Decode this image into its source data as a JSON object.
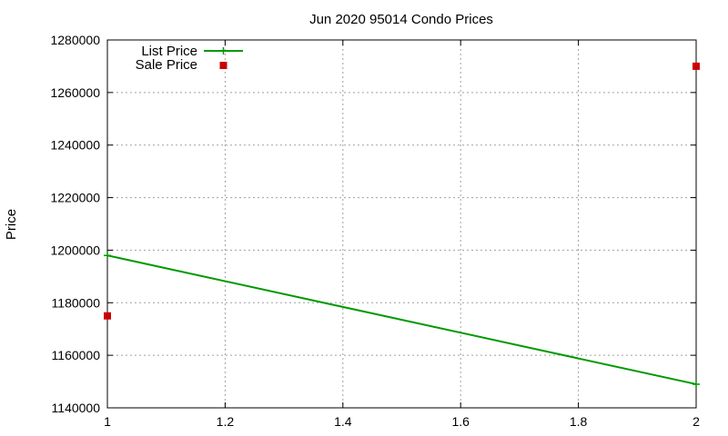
{
  "chart_data": {
    "type": "line",
    "title": "Jun 2020 95014 Condo Prices",
    "xlabel": "",
    "ylabel": "Price",
    "xlim": [
      1,
      2
    ],
    "ylim": [
      1140000,
      1280000
    ],
    "x_ticks": [
      "1",
      "1.2",
      "1.4",
      "1.6",
      "1.8",
      "2"
    ],
    "y_ticks": [
      "1140000",
      "1160000",
      "1180000",
      "1200000",
      "1220000",
      "1240000",
      "1260000",
      "1280000"
    ],
    "grid": true,
    "legend_position": "top-left",
    "series": [
      {
        "name": "List Price",
        "style": "line",
        "color": "#009900",
        "x": [
          1,
          2
        ],
        "y": [
          1198000,
          1149000
        ]
      },
      {
        "name": "Sale Price",
        "style": "points",
        "color": "#cc0000",
        "x": [
          1,
          2
        ],
        "y": [
          1175000,
          1270000
        ]
      }
    ]
  }
}
